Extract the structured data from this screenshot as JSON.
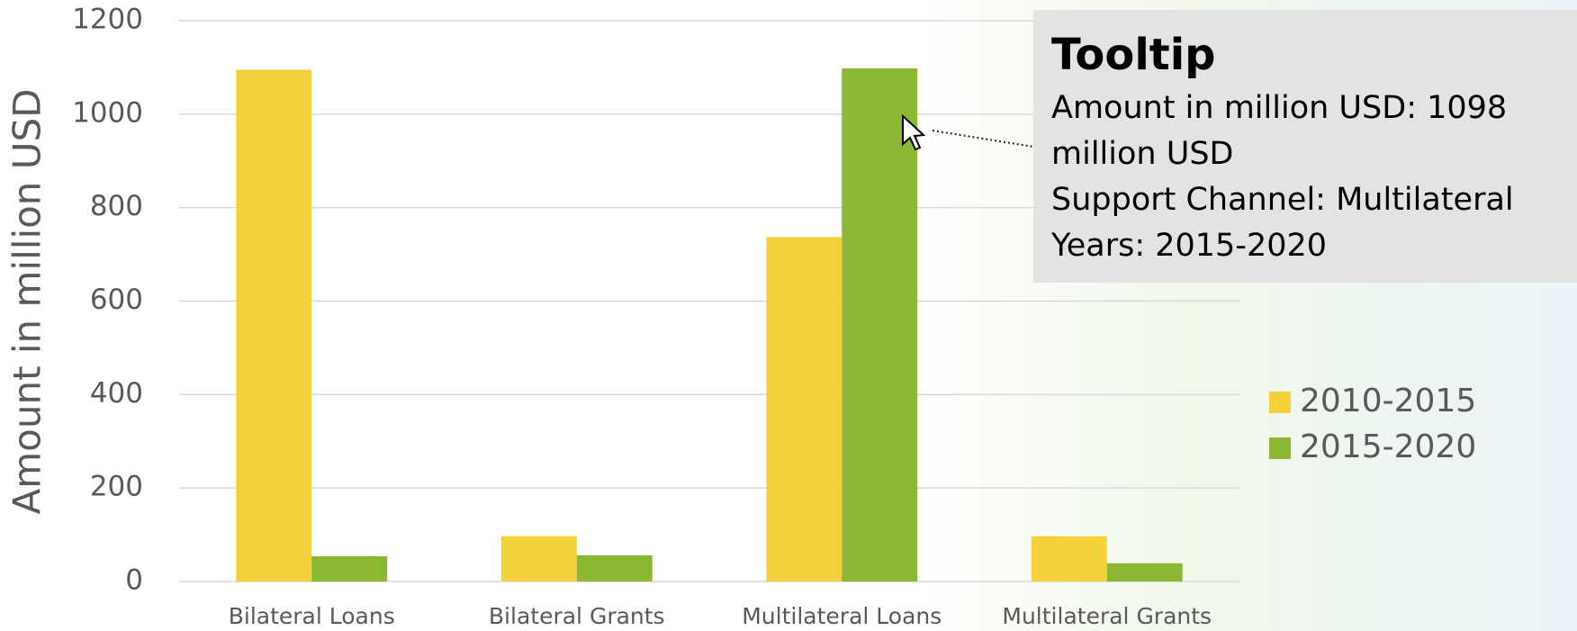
{
  "chart_data": {
    "type": "bar",
    "y_label": "Amount in million USD",
    "categories": [
      "Bilateral Loans",
      "Bilateral Grants",
      "Multilateral Loans",
      "Multilateral Grants"
    ],
    "series": [
      {
        "name": "2010-2015",
        "color": "#f2d13b",
        "values": [
          1095,
          97,
          737,
          97
        ]
      },
      {
        "name": "2015-2020",
        "color": "#8ab833",
        "values": [
          54,
          56,
          1098,
          39
        ]
      }
    ],
    "ylim": [
      0,
      1200
    ],
    "yticks": [
      0,
      200,
      400,
      600,
      800,
      1000,
      1200
    ],
    "grid": true
  },
  "tooltip": {
    "title": "Tooltip",
    "lines": [
      "Amount in million USD: 1098 million USD",
      "Support Channel: Multilateral",
      "Years: 2015-2020"
    ]
  }
}
